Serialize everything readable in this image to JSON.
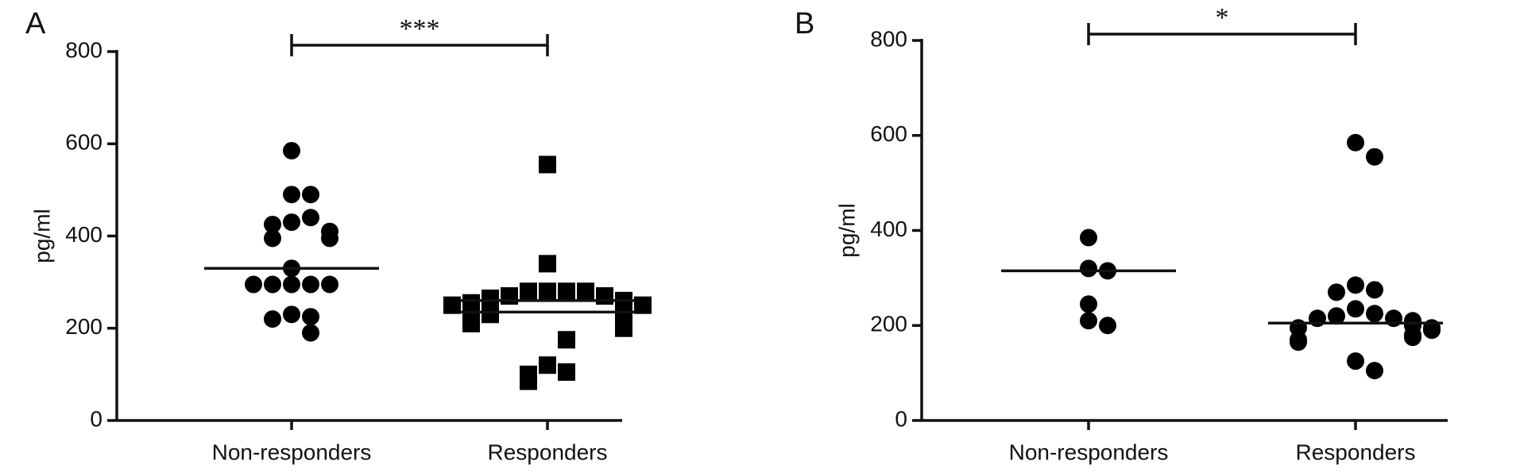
{
  "chart_data": [
    {
      "type": "strip",
      "panel": "A",
      "ylabel": "pg/ml",
      "annotation": "***",
      "categories": [
        "Non-responders",
        "Responders"
      ],
      "markers": [
        "circle",
        "square"
      ],
      "color": "#000000",
      "values": [
        [
          585,
          490,
          490,
          430,
          440,
          425,
          410,
          395,
          395,
          330,
          295,
          295,
          295,
          295,
          295,
          230,
          225,
          220,
          190
        ],
        [
          555,
          340,
          280,
          280,
          280,
          280,
          270,
          270,
          265,
          260,
          255,
          250,
          250,
          240,
          235,
          230,
          230,
          225,
          225,
          220,
          215,
          210,
          200,
          175,
          120,
          105,
          100,
          85
        ]
      ],
      "lines": [
        [
          330
        ],
        [
          260,
          235
        ]
      ],
      "ylim": [
        0,
        800
      ],
      "yticks": [
        0,
        200,
        400,
        600,
        800
      ]
    },
    {
      "type": "strip",
      "panel": "B",
      "ylabel": "pg/ml",
      "annotation": "*",
      "categories": [
        "Non-responders",
        "Responders"
      ],
      "markers": [
        "circle",
        "circle"
      ],
      "color": "#000000",
      "values": [
        [
          385,
          320,
          315,
          245,
          210,
          200
        ],
        [
          585,
          555,
          285,
          275,
          270,
          235,
          225,
          220,
          215,
          215,
          210,
          200,
          195,
          195,
          190,
          180,
          175,
          170,
          165,
          125,
          105
        ]
      ],
      "lines": [
        [
          315
        ],
        [
          205
        ]
      ],
      "ylim": [
        0,
        800
      ],
      "yticks": [
        0,
        200,
        400,
        600,
        800
      ]
    }
  ]
}
